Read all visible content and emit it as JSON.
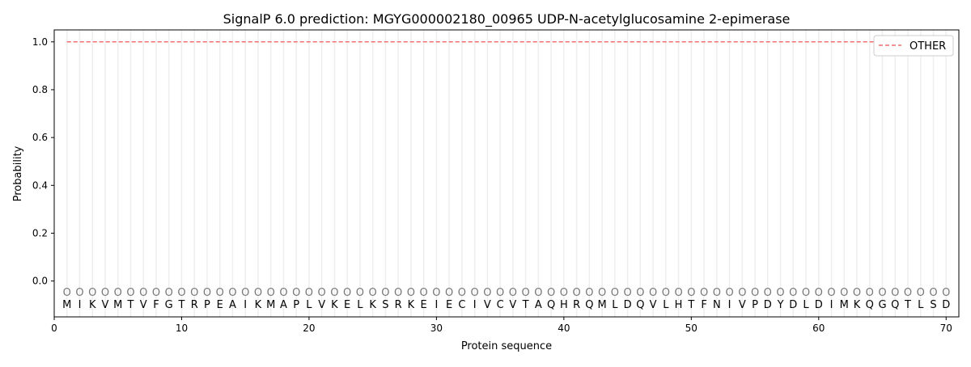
{
  "chart_data": {
    "type": "line",
    "title": "SignalP 6.0 prediction: MGYG000002180_00965 UDP-N-acetylglucosamine 2-epimerase",
    "xlabel": "Protein sequence",
    "ylabel": "Probability",
    "xlim": [
      0,
      71
    ],
    "ylim": [
      -0.15,
      1.05
    ],
    "xticks": [
      0,
      10,
      20,
      30,
      40,
      50,
      60,
      70
    ],
    "yticks": [
      0.0,
      0.2,
      0.4,
      0.6,
      0.8,
      1.0
    ],
    "ytick_labels": [
      "0.0",
      "0.2",
      "0.4",
      "0.6",
      "0.8",
      "1.0"
    ],
    "grid": "vertical lines at each residue",
    "legend_position": "top-right",
    "sequence": [
      "M",
      "I",
      "K",
      "V",
      "M",
      "T",
      "V",
      "F",
      "G",
      "T",
      "R",
      "P",
      "E",
      "A",
      "I",
      "K",
      "M",
      "A",
      "P",
      "L",
      "V",
      "K",
      "E",
      "L",
      "K",
      "S",
      "R",
      "K",
      "E",
      "I",
      "E",
      "C",
      "I",
      "V",
      "C",
      "V",
      "T",
      "A",
      "Q",
      "H",
      "R",
      "Q",
      "M",
      "L",
      "D",
      "Q",
      "V",
      "L",
      "H",
      "T",
      "F",
      "N",
      "I",
      "V",
      "P",
      "D",
      "Y",
      "D",
      "L",
      "D",
      "I",
      "M",
      "K",
      "Q",
      "G",
      "Q",
      "T",
      "L",
      "S",
      "D"
    ],
    "region_label": "O",
    "series": [
      {
        "name": "OTHER",
        "color": "#f07070",
        "style": "dashed",
        "x_range": [
          1,
          70
        ],
        "value": 1.0
      }
    ]
  }
}
